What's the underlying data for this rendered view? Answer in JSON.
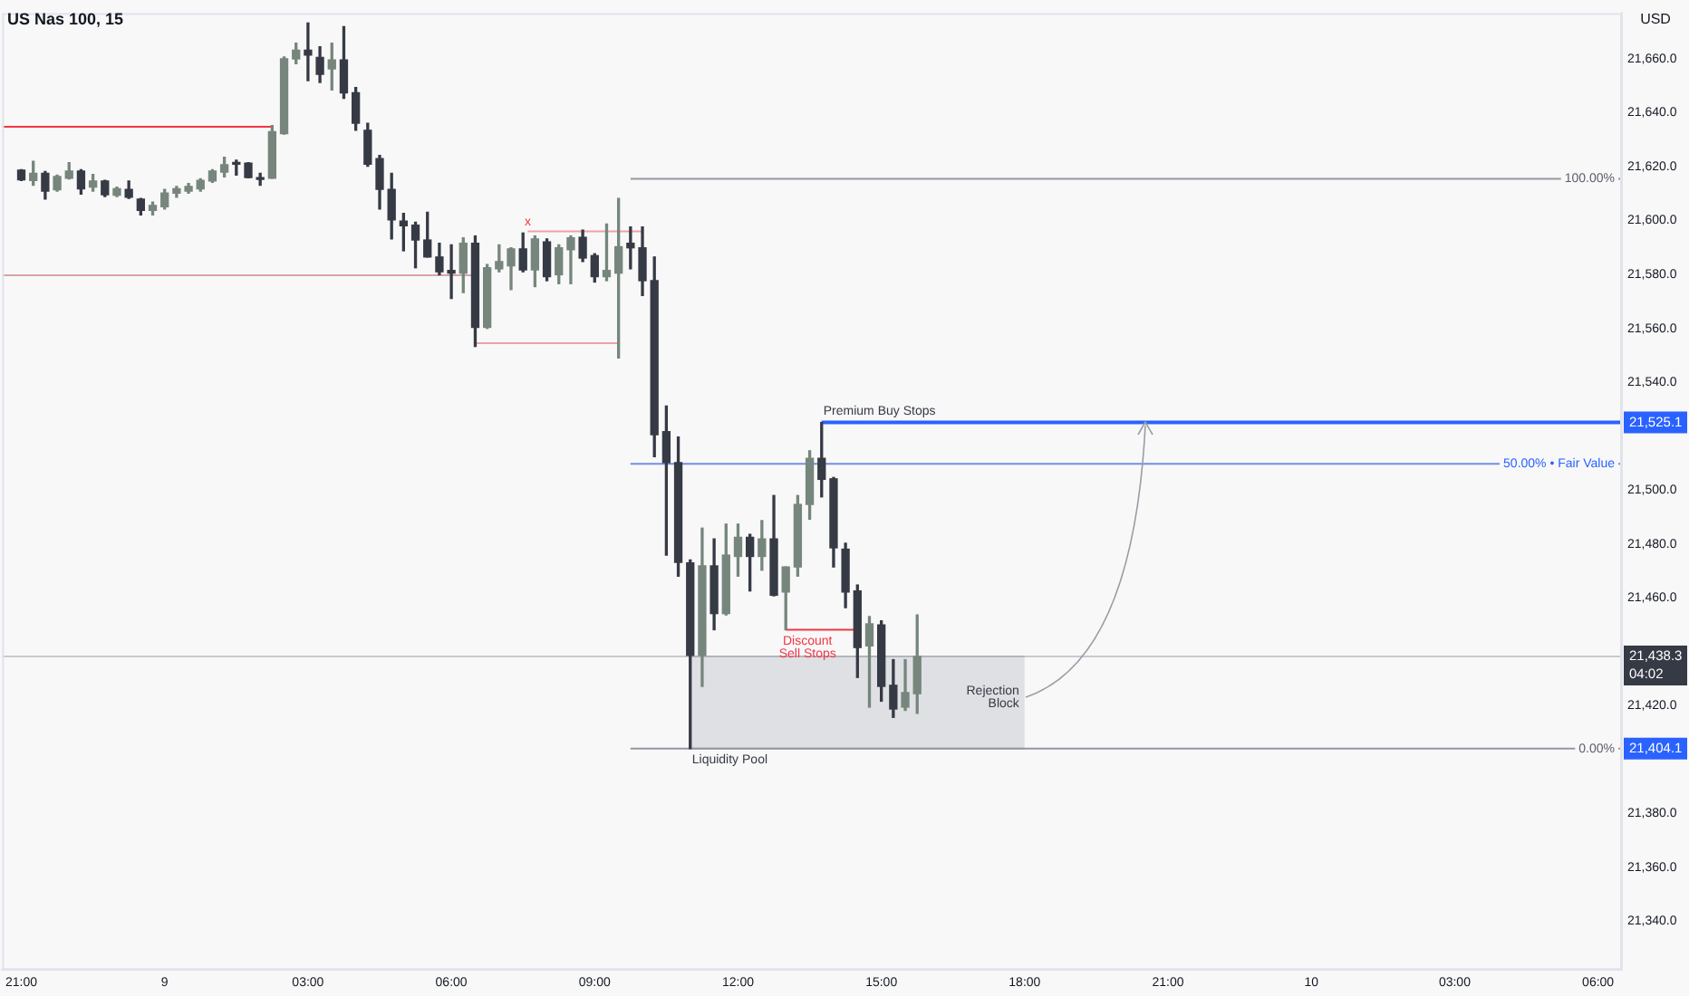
{
  "chart_data": {
    "type": "candlestick",
    "title": "US Nas 100, 15",
    "ylabel": "USD",
    "x": [
      "--12-08T21:00",
      "--12-08T21:15",
      "--12-08T21:30",
      "--12-08T21:45",
      "--12-08T22:00",
      "--12-08T22:15",
      "--12-08T22:30",
      "--12-08T22:45",
      "--12-08T23:00",
      "--12-08T23:15",
      "--12-08T23:30",
      "--12-08T23:45",
      "--12-09T00:00",
      "--12-09T00:15",
      "--12-09T00:30",
      "--12-09T00:45",
      "--12-09T01:00",
      "--12-09T01:15",
      "--12-09T01:30",
      "--12-09T01:45",
      "--12-09T02:00",
      "--12-09T02:15",
      "--12-09T02:30",
      "--12-09T02:45",
      "--12-09T03:00",
      "--12-09T03:15",
      "--12-09T03:30",
      "--12-09T03:45",
      "--12-09T04:00",
      "--12-09T04:15",
      "--12-09T04:30",
      "--12-09T04:45",
      "--12-09T05:00",
      "--12-09T05:15",
      "--12-09T05:30",
      "--12-09T05:45",
      "--12-09T06:00",
      "--12-09T06:15",
      "--12-09T06:30",
      "--12-09T06:45",
      "--12-09T07:00",
      "--12-09T07:15",
      "--12-09T07:30",
      "--12-09T07:45",
      "--12-09T08:00",
      "--12-09T08:15",
      "--12-09T08:30",
      "--12-09T08:45",
      "--12-09T09:00",
      "--12-09T09:15",
      "--12-09T09:30",
      "--12-09T09:45",
      "--12-09T10:00",
      "--12-09T10:15",
      "--12-09T10:30",
      "--12-09T10:45",
      "--12-09T11:00",
      "--12-09T11:15",
      "--12-09T11:30",
      "--12-09T11:45",
      "--12-09T12:00",
      "--12-09T12:15",
      "--12-09T12:30",
      "--12-09T12:45",
      "--12-09T13:00",
      "--12-09T13:15",
      "--12-09T13:30",
      "--12-09T13:45",
      "--12-09T14:00",
      "--12-09T14:15",
      "--12-09T14:30",
      "--12-09T14:45",
      "--12-09T15:00",
      "--12-09T15:15",
      "--12-09T15:30",
      "--12-09T15:45"
    ],
    "ohlc": [
      [
        21618.7,
        21618.9,
        21614.9,
        21615.1
      ],
      [
        21614.9,
        21622,
        21613.1,
        21617.5
      ],
      [
        21617.5,
        21618.2,
        21608,
        21610.9
      ],
      [
        21611.4,
        21616.9,
        21610.9,
        21616.4
      ],
      [
        21615.7,
        21621.5,
        21615.5,
        21618.4
      ],
      [
        21618.4,
        21618.9,
        21609.8,
        21611.8
      ],
      [
        21612.4,
        21617.1,
        21610.9,
        21614.7
      ],
      [
        21614.7,
        21614.9,
        21608.9,
        21609.6
      ],
      [
        21609.4,
        21612.4,
        21608.9,
        21611.8
      ],
      [
        21611.6,
        21614.7,
        21608.2,
        21608.7
      ],
      [
        21608,
        21608.2,
        21602.1,
        21603.8
      ],
      [
        21603.8,
        21606.9,
        21602.1,
        21605.6
      ],
      [
        21605.1,
        21611.6,
        21604.3,
        21610.2
      ],
      [
        21610.2,
        21612.7,
        21608.7,
        21611.8
      ],
      [
        21610.9,
        21613.8,
        21610.2,
        21612.7
      ],
      [
        21611.8,
        21615.5,
        21610.9,
        21614.9
      ],
      [
        21614.7,
        21618.9,
        21614.2,
        21618.4
      ],
      [
        21618,
        21623.5,
        21616.2,
        21620.7
      ],
      [
        21621.1,
        21622.4,
        21616.9,
        21620.9
      ],
      [
        21621.3,
        21621.5,
        21615.9,
        21616
      ],
      [
        21615.5,
        21617.5,
        21613.1,
        21615.3
      ],
      [
        21615.7,
        21635.3,
        21615.7,
        21633
      ],
      [
        21632.3,
        21660.7,
        21632.1,
        21660
      ],
      [
        21660,
        21665.8,
        21658.2,
        21663.2
      ],
      [
        21663.2,
        21673.3,
        21651.9,
        21661.4
      ],
      [
        21660.5,
        21664.5,
        21651.2,
        21654.3
      ],
      [
        21656.3,
        21665.8,
        21648.5,
        21659.6
      ],
      [
        21659.6,
        21672,
        21645.4,
        21647.4
      ],
      [
        21647.4,
        21649.4,
        21633.5,
        21636.1
      ],
      [
        21633.5,
        21636.1,
        21620.2,
        21620.9
      ],
      [
        21623,
        21624.2,
        21604.3,
        21611.6
      ],
      [
        21611.6,
        21617.5,
        21593.2,
        21600.3
      ],
      [
        21599.8,
        21602.7,
        21588.8,
        21598.1
      ],
      [
        21598.3,
        21599.4,
        21582.5,
        21592.8
      ],
      [
        21592.8,
        21603.1,
        21586.5,
        21586.5
      ],
      [
        21586.5,
        21591.6,
        21579.9,
        21581
      ],
      [
        21581.5,
        21591,
        21571.1,
        21580.5
      ],
      [
        21580.5,
        21593.6,
        21573.3,
        21591.6
      ],
      [
        21591.6,
        21594.3,
        21553.3,
        21560.4
      ],
      [
        21560.4,
        21583.7,
        21560,
        21582.5
      ],
      [
        21582.1,
        21591,
        21581,
        21584.8
      ],
      [
        21583.2,
        21589.9,
        21574.4,
        21589.5
      ],
      [
        21589.5,
        21595.4,
        21581,
        21581.7
      ],
      [
        21581.7,
        21594.3,
        21575.5,
        21593.2
      ],
      [
        21592.1,
        21593.2,
        21577.7,
        21579.2
      ],
      [
        21579.9,
        21591,
        21576.6,
        21589.9
      ],
      [
        21589.2,
        21594.3,
        21576.6,
        21593.6
      ],
      [
        21593.8,
        21596.5,
        21584.8,
        21586.1
      ],
      [
        21587,
        21587.7,
        21577.2,
        21579.2
      ],
      [
        21579.2,
        21598.7,
        21577.7,
        21581.5
      ],
      [
        21580.5,
        21608.2,
        21549,
        21590.3
      ],
      [
        21591.6,
        21597.6,
        21582.1,
        21589.9
      ],
      [
        21589.9,
        21597.6,
        21572.2,
        21577.7
      ],
      [
        21577.7,
        21586.5,
        21512.4,
        21520.6
      ],
      [
        21521.7,
        21531.2,
        21475.9,
        21510.2
      ],
      [
        21510.2,
        21519.7,
        21468.1,
        21473.2
      ],
      [
        21473,
        21474.1,
        21404.1,
        21438.7
      ],
      [
        21438.7,
        21485.9,
        21427.2,
        21471.9
      ],
      [
        21471.9,
        21481.9,
        21448.2,
        21454.2
      ],
      [
        21454.2,
        21487.4,
        21453.7,
        21475.9
      ],
      [
        21475.4,
        21487.4,
        21468.1,
        21482.5
      ],
      [
        21482.5,
        21483.6,
        21462.6,
        21475.4
      ],
      [
        21475.4,
        21488.7,
        21470.3,
        21481.9
      ],
      [
        21481.9,
        21498,
        21460.8,
        21461
      ],
      [
        21462.2,
        21471.5,
        21448.2,
        21471.5
      ],
      [
        21471.5,
        21498,
        21468.1,
        21494.7
      ],
      [
        21494.7,
        21514.6,
        21489.2,
        21511.8
      ],
      [
        21511.8,
        21525.1,
        21497.5,
        21504
      ],
      [
        21504.2,
        21504.7,
        21471.5,
        21478.6
      ],
      [
        21478.1,
        21480.3,
        21456.4,
        21462.2
      ],
      [
        21462.6,
        21464.8,
        21430.5,
        21441.6
      ],
      [
        21442.2,
        21453.1,
        21419.5,
        21450.4
      ],
      [
        21450,
        21451.5,
        21421.7,
        21427.2
      ],
      [
        21427.6,
        21437.1,
        21415.7,
        21418.8
      ],
      [
        21419.5,
        21437.1,
        21418.3,
        21424.9
      ],
      [
        21424.5,
        21453.7,
        21417.2,
        21438.3
      ]
    ],
    "colors": [
      "#363a45",
      "#76867c",
      "#363a45",
      "#76867c",
      "#76867c",
      "#363a45",
      "#76867c",
      "#363a45",
      "#76867c",
      "#363a45",
      "#363a45",
      "#76867c",
      "#76867c",
      "#76867c",
      "#76867c",
      "#76867c",
      "#76867c",
      "#76867c",
      "#363a45",
      "#363a45",
      "#363a45",
      "#76867c",
      "#76867c",
      "#76867c",
      "#363a45",
      "#363a45",
      "#76867c",
      "#363a45",
      "#363a45",
      "#363a45",
      "#363a45",
      "#363a45",
      "#363a45",
      "#363a45",
      "#363a45",
      "#363a45",
      "#363a45",
      "#76867c",
      "#363a45",
      "#76867c",
      "#76867c",
      "#76867c",
      "#363a45",
      "#76867c",
      "#363a45",
      "#76867c",
      "#76867c",
      "#363a45",
      "#363a45",
      "#76867c",
      "#76867c",
      "#363a45",
      "#363a45",
      "#363a45",
      "#363a45",
      "#363a45",
      "#363a45",
      "#76867c",
      "#363a45",
      "#76867c",
      "#76867c",
      "#363a45",
      "#76867c",
      "#363a45",
      "#76867c",
      "#76867c",
      "#76867c",
      "#363a45",
      "#363a45",
      "#363a45",
      "#363a45",
      "#76867c",
      "#363a45",
      "#363a45",
      "#76867c",
      "#76867c"
    ],
    "series": [
      {
        "type": "line",
        "x": [
          "--12-09T11:00",
          "--12-09T18:00"
        ],
        "values": [
          21438.3,
          21438.3
        ],
        "lower": [
          21404.1,
          21404.1
        ],
        "upper": [
          21438.3,
          21438.3
        ],
        "color": "#b2b5be"
      },
      {
        "type": "line",
        "x": [
          "--12-08T20:36",
          "--12-09T02:15"
        ],
        "values": [
          21634.8,
          21634.8
        ],
        "color": "#f23645"
      },
      {
        "type": "line",
        "x": [
          "--12-08T20:36",
          "--12-09T06:30"
        ],
        "values": [
          21579.7,
          21579.7
        ],
        "color": "#d8a4aa"
      },
      {
        "type": "line",
        "x": [
          "--12-09T06:30",
          "--12-09T09:30"
        ],
        "values": [
          21554.5,
          21554.5
        ],
        "color": "#f0a0a8"
      },
      {
        "type": "line",
        "x": [
          "--12-09T07:36",
          "--12-09T10:00"
        ],
        "values": [
          21596,
          21596
        ],
        "color": "#f0a0a8"
      },
      {
        "type": "line",
        "x": [
          "--12-09T09:45",
          "--12-10T06:30"
        ],
        "values": [
          21615.5,
          21615.5
        ],
        "color": "#9598a1"
      },
      {
        "type": "line",
        "x": [
          "--12-09T09:45",
          "--12-10T06:30"
        ],
        "values": [
          21509.8,
          21509.8
        ],
        "color": "#6f8fe8"
      },
      {
        "type": "line",
        "x": [
          "--12-09T13:45",
          "--12-10T06:30"
        ],
        "values": [
          21525.1,
          21525.1
        ],
        "color": "#2962ff"
      },
      {
        "type": "line",
        "x": [
          "--12-09T09:45",
          "--12-10T06:30"
        ],
        "values": [
          21404.1,
          21404.1
        ],
        "color": "#9598a1"
      },
      {
        "type": "line",
        "x": [
          "--12-09T13:00",
          "--12-09T14:30"
        ],
        "values": [
          21448.2,
          21448.2
        ],
        "color": "#f23645"
      }
    ],
    "ref_lines": [
      {
        "axis": "y",
        "value": 21438.3,
        "color": "#c8cad0"
      }
    ],
    "annotations": [
      {
        "text": "Premium Buy Stops",
        "x": "--12-09T13:45",
        "y": 21525.1
      },
      {
        "text": "50.00% • Fair Value",
        "x": "--12-10T06:30",
        "y": 21509.8
      },
      {
        "text": "100.00%",
        "x": "--12-10T06:30",
        "y": 21615.5
      },
      {
        "text": "0.00%",
        "x": "--12-10T06:30",
        "y": 21404.1
      },
      {
        "text": "Discount\nSell Stops",
        "x": "--12-09T13:00",
        "y": 21448.2
      },
      {
        "text": "Liquidity Pool",
        "x": "--12-09T11:00",
        "y": 21404.1
      },
      {
        "text": "Rejection\nBlock",
        "x": "--12-09T18:00",
        "y": 21423
      },
      {
        "text": "x",
        "x": "--12-09T07:36",
        "y": 21596
      },
      "21,525.1",
      "21,438.3\n04:02",
      "21,404.1"
    ],
    "xlim": [
      "--12-08T20:36",
      "--12-10T06:30"
    ],
    "ylim": [
      21322,
      21677
    ],
    "xticks": [
      {
        "value": "--12-08T21:00",
        "label": "21:00"
      },
      {
        "value": "--12-09",
        "label": "9"
      },
      {
        "value": "--12-09T03:00",
        "label": "03:00"
      },
      {
        "value": "--12-09T06:00",
        "label": "06:00"
      },
      {
        "value": "--12-09T09:00",
        "label": "09:00"
      },
      {
        "value": "--12-09T12:00",
        "label": "12:00"
      },
      {
        "value": "--12-09T15:00",
        "label": "15:00"
      },
      {
        "value": "--12-09T18:00",
        "label": "18:00"
      },
      {
        "value": "--12-09T21:00",
        "label": "21:00"
      },
      {
        "value": "--12-10",
        "label": "10"
      },
      {
        "value": "--12-10T03:00",
        "label": "03:00"
      },
      {
        "value": "--12-10T06:00",
        "label": "06:00"
      }
    ],
    "yticks": [
      {
        "value": 21340,
        "label": "21,340.0"
      },
      {
        "value": 21360,
        "label": "21,360.0"
      },
      {
        "value": 21380,
        "label": "21,380.0"
      },
      {
        "value": 21420,
        "label": "21,420.0"
      },
      {
        "value": 21460,
        "label": "21,460.0"
      },
      {
        "value": 21480,
        "label": "21,480.0"
      },
      {
        "value": 21500,
        "label": "21,500.0"
      },
      {
        "value": 21540,
        "label": "21,540.0"
      },
      {
        "value": 21560,
        "label": "21,560.0"
      },
      {
        "value": 21580,
        "label": "21,580.0"
      },
      {
        "value": 21600,
        "label": "21,600.0"
      },
      {
        "value": 21620,
        "label": "21,620.0"
      },
      {
        "value": 21640,
        "label": "21,640.0"
      },
      {
        "value": 21660,
        "label": "21,660.0"
      }
    ]
  }
}
